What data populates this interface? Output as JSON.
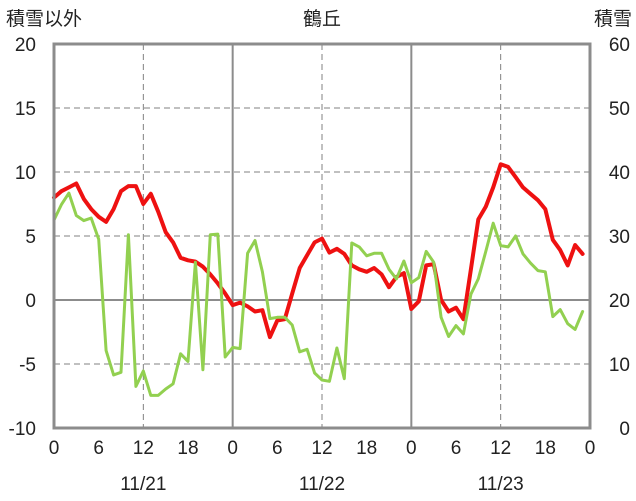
{
  "chart_data": {
    "type": "line",
    "title": "鶴丘",
    "left_axis_label": "積雪以外",
    "right_axis_label": "積雪",
    "left_ylim": [
      -10,
      20
    ],
    "left_yticks": [
      "20",
      "15",
      "10",
      "5",
      "0",
      "-5",
      "-10"
    ],
    "right_ylim": [
      0,
      60
    ],
    "right_yticks": [
      "60",
      "50",
      "40",
      "30",
      "20",
      "10",
      "0"
    ],
    "xlim": [
      0,
      72
    ],
    "hour_ticks": [
      "0",
      "6",
      "12",
      "18",
      "0",
      "6",
      "12",
      "18",
      "0",
      "6",
      "12",
      "18",
      "0"
    ],
    "date_labels": [
      "11/21",
      "11/22",
      "11/23"
    ],
    "grid": true,
    "series": [
      {
        "axis": "left",
        "color": "#ee1111",
        "x": [
          0,
          1,
          2,
          3,
          4,
          5,
          6,
          7,
          8,
          9,
          10,
          11,
          12,
          13,
          14,
          15,
          16,
          17,
          18,
          19,
          20,
          21,
          22,
          23,
          24,
          25,
          26,
          27,
          28,
          29,
          30,
          31,
          32,
          33,
          34,
          35,
          36,
          37,
          38,
          39,
          40,
          41,
          42,
          43,
          44,
          45,
          46,
          47,
          48,
          49,
          50,
          51,
          52,
          53,
          54,
          55,
          56,
          57,
          58,
          59,
          60,
          61,
          62,
          63,
          64,
          65,
          66,
          67,
          68,
          69,
          70,
          71
        ],
        "values": [
          8.0,
          8.5,
          8.8,
          9.1,
          7.9,
          7.1,
          6.5,
          6.1,
          7.1,
          8.5,
          8.9,
          8.9,
          7.5,
          8.3,
          6.9,
          5.3,
          4.5,
          3.3,
          3.1,
          3.0,
          2.6,
          2.0,
          1.3,
          0.5,
          -0.4,
          -0.2,
          -0.5,
          -0.9,
          -0.8,
          -2.9,
          -1.6,
          -1.5,
          0.5,
          2.5,
          3.5,
          4.5,
          4.8,
          3.7,
          4.0,
          3.6,
          2.7,
          2.4,
          2.2,
          2.5,
          2.0,
          1.0,
          1.8,
          2.1,
          -0.7,
          -0.1,
          2.7,
          2.8,
          0.0,
          -0.9,
          -0.6,
          -1.5,
          2.4,
          6.3,
          7.3,
          8.8,
          10.6,
          10.4,
          9.6,
          8.8,
          8.3,
          7.8,
          7.1,
          4.7,
          3.9,
          2.7,
          4.3,
          3.6
        ]
      },
      {
        "axis": "right",
        "color": "#92d050",
        "x": [
          0,
          1,
          2,
          3,
          4,
          5,
          6,
          7,
          8,
          9,
          10,
          11,
          12,
          13,
          14,
          15,
          16,
          17,
          18,
          19,
          20,
          21,
          22,
          23,
          24,
          25,
          26,
          27,
          28,
          29,
          30,
          31,
          32,
          33,
          34,
          35,
          36,
          37,
          38,
          39,
          40,
          41,
          42,
          43,
          44,
          45,
          46,
          47,
          48,
          49,
          50,
          51,
          52,
          53,
          54,
          55,
          56,
          57,
          58,
          59,
          60,
          61,
          62,
          63,
          64,
          65,
          66,
          67,
          68,
          69,
          70,
          71
        ],
        "values": [
          32.5,
          34.9,
          36.7,
          33.2,
          32.4,
          32.8,
          29.5,
          12.1,
          8.3,
          8.7,
          30.2,
          6.5,
          8.9,
          5.1,
          5.1,
          6.1,
          6.9,
          11.6,
          10.4,
          25.9,
          9.1,
          30.2,
          30.3,
          11.1,
          12.6,
          12.4,
          27.3,
          29.3,
          24.4,
          17.1,
          17.3,
          17.3,
          16.1,
          11.9,
          12.3,
          8.6,
          7.5,
          7.3,
          12.5,
          7.7,
          28.9,
          28.3,
          26.9,
          27.3,
          27.3,
          24.8,
          23.3,
          26.1,
          22.7,
          23.5,
          27.6,
          25.9,
          17.3,
          14.3,
          16.0,
          14.7,
          20.9,
          23.3,
          27.6,
          32.0,
          28.5,
          28.3,
          30.0,
          27.2,
          25.8,
          24.6,
          24.4,
          17.4,
          18.5,
          16.3,
          15.4,
          18.2
        ]
      },
      {
        "axis": "right",
        "color": "#7030a0",
        "x": [
          0,
          72
        ],
        "values": [
          0,
          0
        ]
      }
    ]
  }
}
